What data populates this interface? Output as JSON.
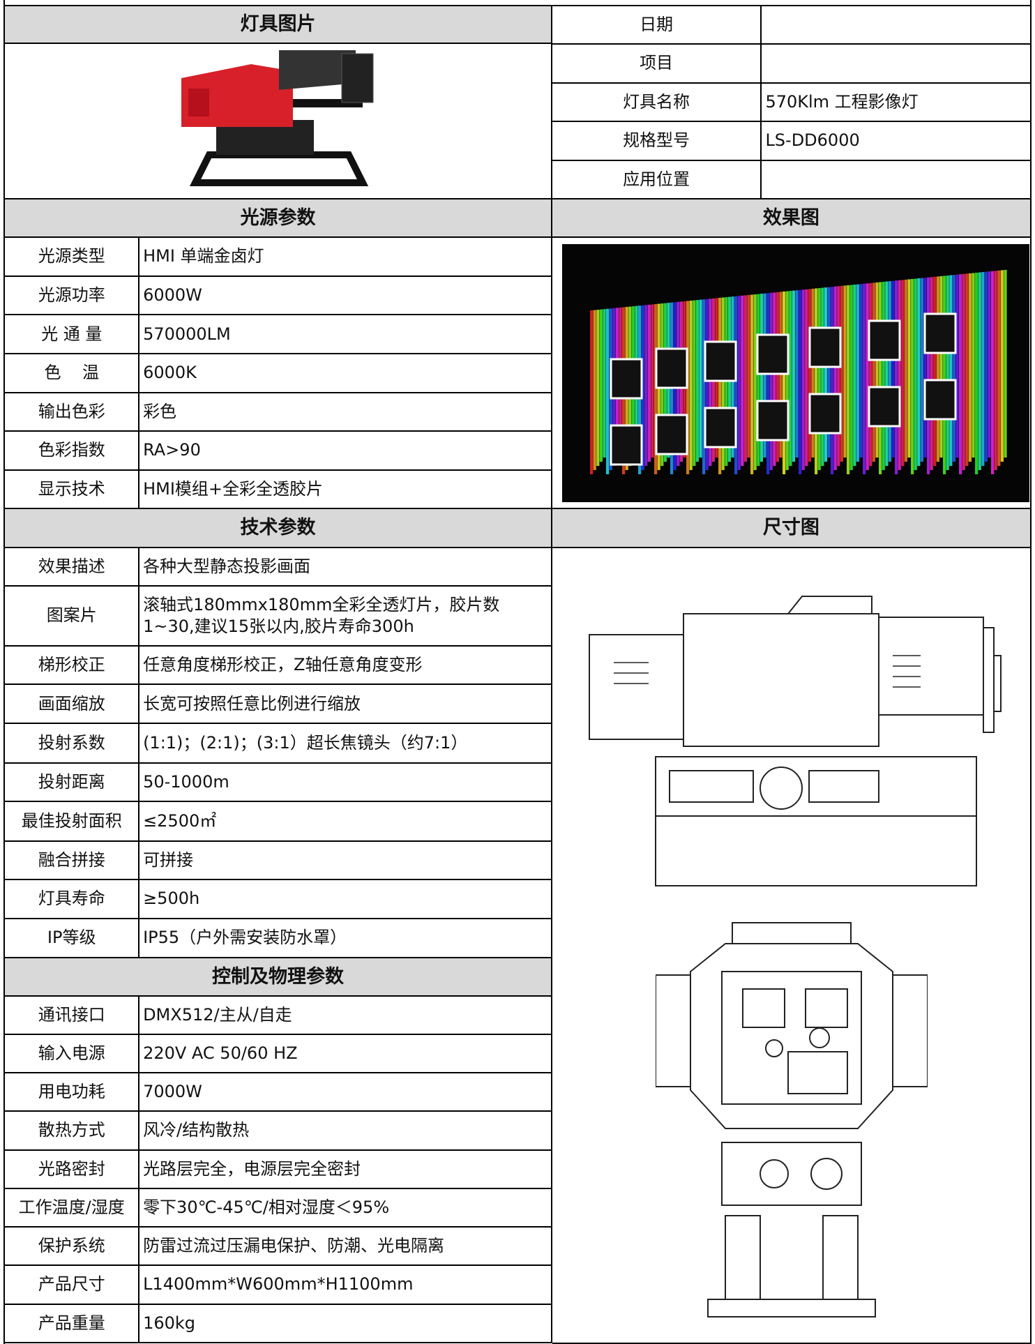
{
  "header_left": "灯具图片",
  "info": [
    {
      "label": "日期"
    },
    {
      "label": "项目"
    },
    {
      "label": "灯具名称",
      "value": "570Klm 工程影像灯"
    },
    {
      "label": "规格型号",
      "value": "LS-DD6000"
    },
    {
      "label": "应用位置"
    }
  ],
  "effect_title": "效果图",
  "dimension_title": "尺寸图",
  "sections": [
    {
      "title": "光源参数",
      "rows": [
        {
          "label": "光源类型",
          "value": "HMI 单端金卤灯"
        },
        {
          "label": "光源功率",
          "value": "6000W"
        },
        {
          "label": "光 通 量",
          "value": "570000LM"
        },
        {
          "label": "色    温",
          "value": "6000K"
        },
        {
          "label": "输出色彩",
          "value": "彩色"
        },
        {
          "label": "色彩指数",
          "value": "RA>90"
        },
        {
          "label": "显示技术",
          "value": "HMI模组+全彩全透胶片"
        }
      ]
    },
    {
      "title": "技术参数",
      "rows": [
        {
          "label": "效果描述",
          "value": "各种大型静态投影画面"
        },
        {
          "label": "图案片",
          "value": "滚轴式180mmx180mm全彩全透灯片，胶片数1~30,建议15张以内,胶片寿命300h"
        },
        {
          "label": "梯形校正",
          "value": "任意角度梯形校正，Z轴任意角度变形"
        },
        {
          "label": "画面缩放",
          "value": "长宽可按照任意比例进行缩放"
        },
        {
          "label": "投射系数",
          "value": "(1:1)；(2:1)；(3:1）超长焦镜头（约7:1）"
        },
        {
          "label": "投射距离",
          "value": "50-1000m"
        },
        {
          "label": "最佳投射面积",
          "value": "≤2500㎡"
        },
        {
          "label": "融合拼接",
          "value": "可拼接"
        },
        {
          "label": "灯具寿命",
          "value": "≥500h"
        },
        {
          "label": "IP等级",
          "value": "IP55（户外需安装防水罩）"
        }
      ]
    },
    {
      "title": "控制及物理参数",
      "rows": [
        {
          "label": "通讯接口",
          "value": "DMX512/主从/自走"
        },
        {
          "label": "输入电源",
          "value": "220V AC 50/60 HZ"
        },
        {
          "label": "用电功耗",
          "value": "7000W"
        },
        {
          "label": "散热方式",
          "value": "风冷/结构散热"
        },
        {
          "label": "光路密封",
          "value": "光路层完全，电源层完全密封"
        },
        {
          "label": "工作温度/湿度",
          "value": "零下30℃-45℃/相对湿度＜95%"
        },
        {
          "label": "保护系统",
          "value": "防雷过流过压漏电保护、防潮、光电隔离"
        },
        {
          "label": "产品尺寸",
          "value": "L1400mm*W600mm*H1100mm"
        },
        {
          "label": "产品重量",
          "value": "160kg"
        }
      ]
    }
  ]
}
